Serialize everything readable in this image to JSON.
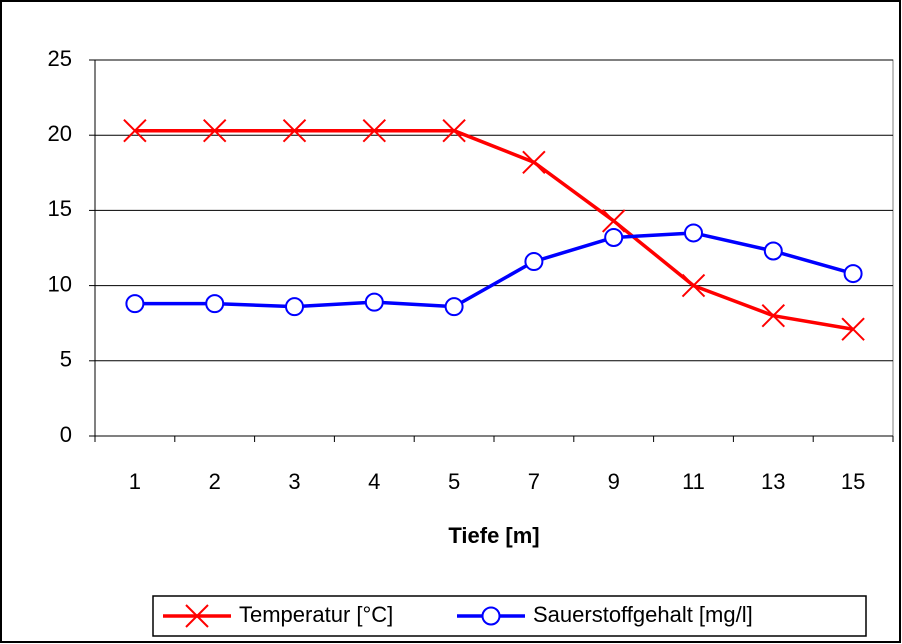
{
  "chart_data": {
    "type": "line",
    "x_label": "Tiefe [m]",
    "categories": [
      "1",
      "2",
      "3",
      "4",
      "5",
      "7",
      "9",
      "11",
      "13",
      "15"
    ],
    "series": [
      {
        "name": "Temperatur [°C]",
        "color": "#ff0000",
        "marker": "x",
        "values": [
          20.3,
          20.3,
          20.3,
          20.3,
          20.3,
          18.2,
          14.3,
          10,
          8,
          7.1
        ]
      },
      {
        "name": "Sauerstoffgehalt [mg/l]",
        "color": "#0000ff",
        "marker": "circle",
        "values": [
          8.8,
          8.8,
          8.6,
          8.9,
          8.6,
          11.6,
          13.2,
          13.5,
          12.3,
          10.8
        ]
      }
    ],
    "ylim": [
      0,
      25
    ],
    "yticks": [
      0,
      5,
      10,
      15,
      20,
      25
    ],
    "grid": true,
    "legend": "bottom"
  }
}
